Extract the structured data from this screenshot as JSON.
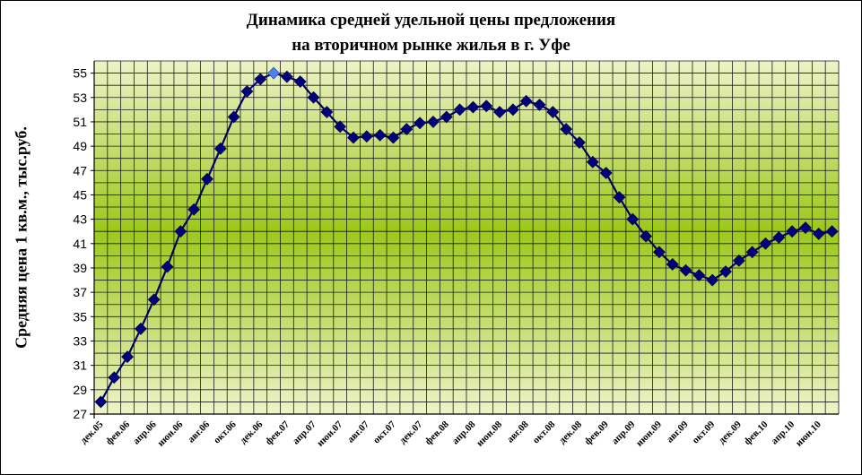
{
  "chart_data": {
    "type": "line",
    "title_lines": [
      "Динамика средней удельной цены предложения",
      "на вторичном рынке жилья в г. Уфе"
    ],
    "xlabel": "",
    "ylabel": "Средняя цена 1 кв.м., тыс.руб.",
    "ylim": [
      27,
      56
    ],
    "y_ticks": [
      27,
      29,
      31,
      33,
      35,
      37,
      39,
      41,
      43,
      45,
      47,
      49,
      51,
      53,
      55
    ],
    "x_tick_labels": [
      "дек.05",
      "фев.06",
      "апр.06",
      "июн.06",
      "авг.06",
      "окт.06",
      "дек.06",
      "фев.07",
      "апр.07",
      "июн.07",
      "авг.07",
      "окт.07",
      "дек.07",
      "фев.08",
      "апр.08",
      "июн.08",
      "авг.08",
      "окт.08",
      "дек.08",
      "фев.09",
      "апр.09",
      "июн.09",
      "авг.09",
      "окт.09",
      "дек.09",
      "фев.10",
      "апр.10",
      "июн.10"
    ],
    "x_tick_every": 2,
    "grid": true,
    "legend": "none",
    "colors": {
      "line": "#000066",
      "marker": "#00007A",
      "highlight_marker": "#4F81E8",
      "band_edge": "#EEF3C8",
      "band_center": "#9CC81A",
      "grid": "#1a1a1a"
    },
    "highlight_index": 13,
    "series": [
      {
        "values": [
          28.0,
          30.0,
          31.7,
          34.0,
          36.4,
          39.1,
          42.0,
          43.8,
          46.3,
          48.8,
          51.4,
          53.5,
          54.5,
          55.0,
          54.7,
          54.3,
          53.0,
          51.8,
          50.6,
          49.7,
          49.8,
          49.9,
          49.7,
          50.4,
          50.9,
          51.0,
          51.4,
          52.0,
          52.2,
          52.3,
          51.8,
          52.0,
          52.7,
          52.4,
          51.8,
          50.4,
          49.3,
          47.7,
          46.8,
          44.8,
          43.0,
          41.6,
          40.3,
          39.3,
          38.8,
          38.4,
          38.0,
          38.7,
          39.6,
          40.3,
          41.0,
          41.5,
          42.0,
          42.3,
          41.8,
          42.0
        ]
      }
    ]
  }
}
